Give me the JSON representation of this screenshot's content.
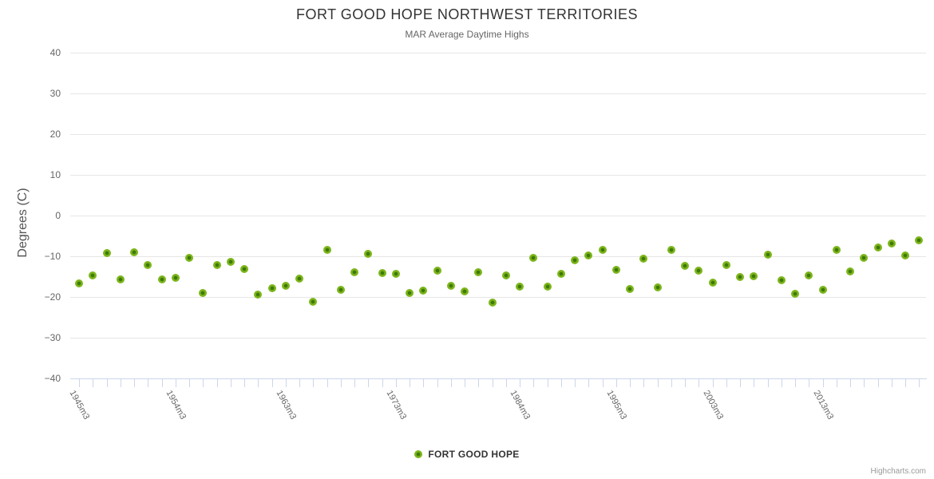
{
  "header": {
    "title": "FORT GOOD HOPE NORTHWEST TERRITORIES",
    "subtitle": "MAR Average Daytime Highs"
  },
  "legend": {
    "label": "FORT GOOD HOPE"
  },
  "credit": {
    "label": "Highcharts.com"
  },
  "chart_data": {
    "type": "scatter",
    "title": "FORT GOOD HOPE NORTHWEST TERRITORIES",
    "subtitle": "MAR Average Daytime Highs",
    "xlabel": "",
    "ylabel": "Degrees (C)",
    "ylim": [
      -40,
      40
    ],
    "y_ticks": [
      40,
      30,
      20,
      10,
      0,
      -10,
      -20,
      -30,
      -40
    ],
    "grid": "horizontal",
    "legend_position": "bottom-center",
    "x_tick_labels": [
      {
        "index": 0,
        "label": "1945m3"
      },
      {
        "index": 7,
        "label": "1954m3"
      },
      {
        "index": 15,
        "label": "1963m3"
      },
      {
        "index": 23,
        "label": "1973m3"
      },
      {
        "index": 32,
        "label": "1984m3"
      },
      {
        "index": 39,
        "label": "1995m3"
      },
      {
        "index": 46,
        "label": "2003m3"
      },
      {
        "index": 54,
        "label": "2013m3"
      }
    ],
    "series": [
      {
        "name": "FORT GOOD HOPE",
        "color": "#7CB51B",
        "marker_center_color": "#3E7A08",
        "values": [
          -16.7,
          -14.8,
          -9.3,
          -15.7,
          -9.0,
          -12.2,
          -15.7,
          -15.3,
          -10.3,
          -19.0,
          -12.2,
          -11.4,
          -13.1,
          -19.4,
          -17.8,
          -17.3,
          -15.5,
          -21.2,
          -8.4,
          -18.2,
          -13.9,
          -9.5,
          -14.1,
          -14.3,
          -19.1,
          -18.5,
          -13.6,
          -17.3,
          -18.6,
          -13.9,
          -21.3,
          -14.7,
          -17.5,
          -10.4,
          -17.5,
          -14.4,
          -10.9,
          -9.8,
          -8.5,
          -13.4,
          -18.1,
          -10.5,
          -17.7,
          -8.5,
          -12.3,
          -13.5,
          -16.5,
          -12.1,
          -15.0,
          -14.9,
          -9.6,
          -15.8,
          -19.2,
          -14.7,
          -18.3,
          -8.5,
          -13.7,
          -10.3,
          -7.8,
          -6.9,
          -9.8,
          -6.1
        ]
      }
    ]
  }
}
